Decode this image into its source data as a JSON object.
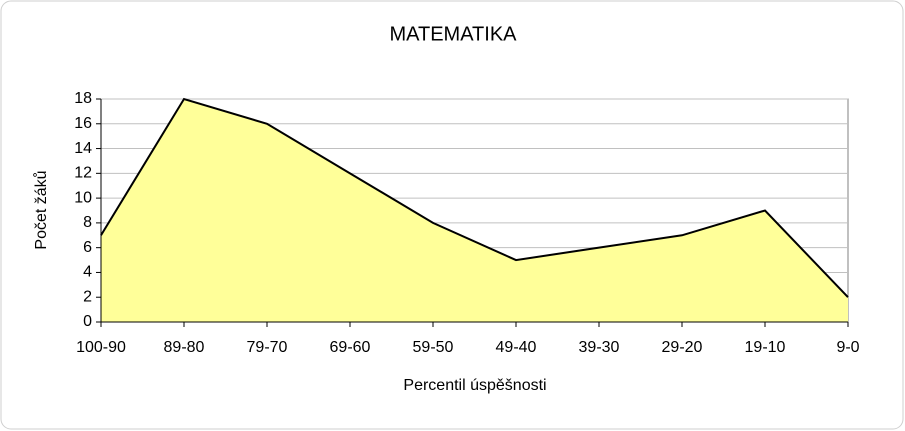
{
  "chart_data": {
    "type": "area",
    "title": "MATEMATIKA",
    "x_label": "Percentil úspěšnosti",
    "y_label": "Počet žáků",
    "categories": [
      "100-90",
      "89-80",
      "79-70",
      "69-60",
      "59-50",
      "49-40",
      "39-30",
      "29-20",
      "19-10",
      "9-0"
    ],
    "values": [
      7,
      18,
      16,
      12,
      8,
      5,
      6,
      7,
      9,
      2
    ],
    "color": "#ffff99",
    "ylim": [
      0,
      18
    ],
    "yticks": [
      0,
      2,
      4,
      6,
      8,
      10,
      12,
      14,
      16,
      18
    ],
    "grid": true
  }
}
